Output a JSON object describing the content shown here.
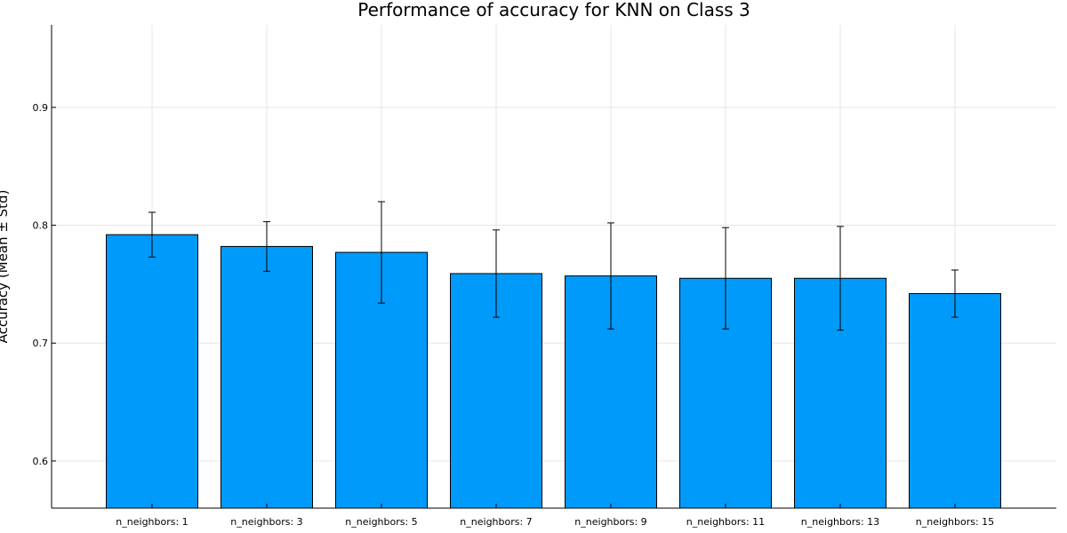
{
  "chart_data": {
    "type": "bar",
    "title": "Performance of accuracy for KNN on Class 3",
    "xlabel": "",
    "ylabel": "Accuracy (Mean ± Std)",
    "categories": [
      "n_neighbors: 1",
      "n_neighbors: 3",
      "n_neighbors: 5",
      "n_neighbors: 7",
      "n_neighbors: 9",
      "n_neighbors: 11",
      "n_neighbors: 13",
      "n_neighbors: 15"
    ],
    "series": [
      {
        "values": [
          0.792,
          0.782,
          0.777,
          0.759,
          0.757,
          0.755,
          0.755,
          0.742
        ],
        "errors": [
          0.019,
          0.021,
          0.043,
          0.037,
          0.045,
          0.043,
          0.044,
          0.02
        ]
      }
    ],
    "ylim": [
      0.56,
      0.97
    ],
    "yticks": [
      0.6,
      0.7,
      0.8,
      0.9
    ],
    "ytick_labels": [
      "0.6",
      "0.7",
      "0.8",
      "0.9"
    ],
    "grid": true,
    "legend": "none",
    "bar_color": "#009AFA"
  }
}
